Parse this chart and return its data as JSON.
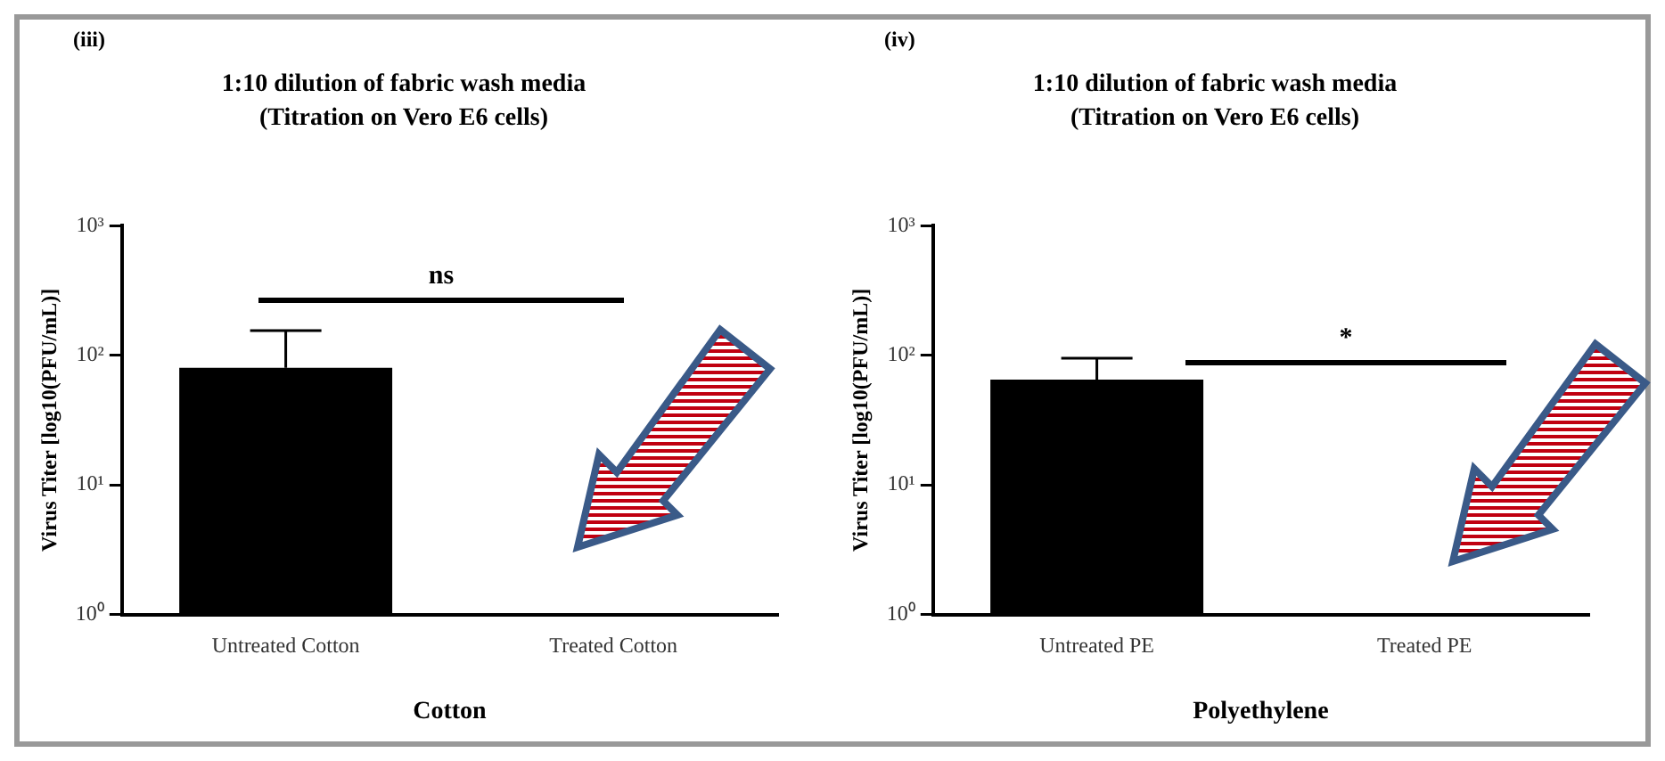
{
  "chart_data": [
    {
      "type": "bar",
      "title": "1:10 dilution of fabric wash media",
      "subtitle": "(Titration on Vero E6 cells)",
      "xlabel": "Cotton",
      "ylabel": "Virus Titer [log10(PFU/mL)]",
      "categories": [
        "Untreated Cotton",
        "Treated Cotton"
      ],
      "values": [
        80,
        null
      ],
      "errors": [
        [
          80,
          155
        ],
        null
      ],
      "color": "#000000",
      "log": true,
      "ylim": [
        1,
        1000
      ],
      "yticks": [
        {
          "value": 1,
          "label": "10⁰"
        },
        {
          "value": 10,
          "label": "10¹"
        },
        {
          "value": 100,
          "label": "10²"
        },
        {
          "value": 1000,
          "label": "10³"
        }
      ],
      "grid": false,
      "legend": false,
      "annotations": [
        "(iii)",
        "ns"
      ]
    },
    {
      "type": "bar",
      "title": "1:10 dilution of fabric wash media",
      "subtitle": "(Titration on Vero E6 cells)",
      "xlabel": "Polyethylene",
      "ylabel": "Virus Titer [log10(PFU/mL)]",
      "categories": [
        "Untreated PE",
        "Treated PE"
      ],
      "values": [
        65,
        null
      ],
      "errors": [
        [
          65,
          95
        ],
        null
      ],
      "color": "#000000",
      "log": true,
      "ylim": [
        1,
        1000
      ],
      "yticks": [
        {
          "value": 1,
          "label": "10⁰"
        },
        {
          "value": 10,
          "label": "10¹"
        },
        {
          "value": 100,
          "label": "10²"
        },
        {
          "value": 1000,
          "label": "10³"
        }
      ],
      "grid": false,
      "legend": false,
      "annotations": [
        "(iv)",
        "*"
      ]
    }
  ]
}
